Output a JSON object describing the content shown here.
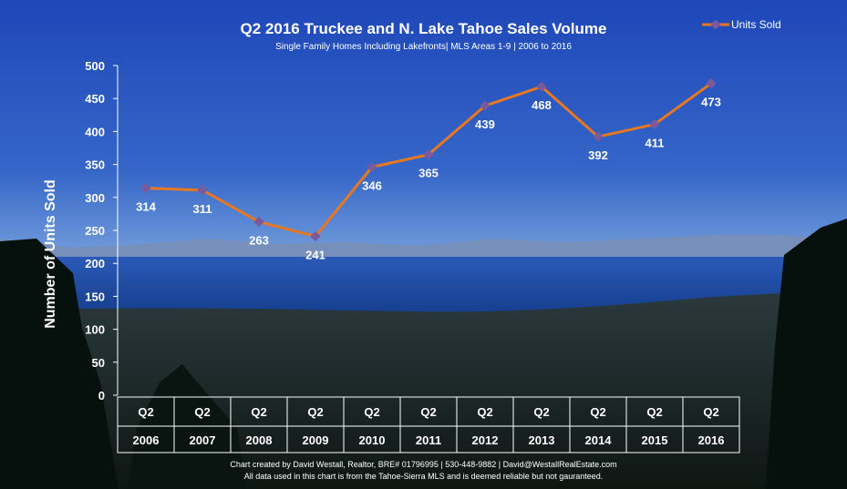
{
  "chart_data": {
    "type": "line",
    "title": "Q2 2016 Truckee and N. Lake Tahoe Sales Volume",
    "subtitle": "Single Family Homes Including Lakefronts| MLS Areas 1-9 | 2006 to 2016",
    "ylabel": "Number of Units Sold",
    "xlabel": "",
    "ylim": [
      0,
      500
    ],
    "yticks": [
      "0",
      "50",
      "100",
      "150",
      "200",
      "250",
      "300",
      "350",
      "400",
      "450",
      "500"
    ],
    "categories": [
      {
        "q": "Q2",
        "year": "2006"
      },
      {
        "q": "Q2",
        "year": "2007"
      },
      {
        "q": "Q2",
        "year": "2008"
      },
      {
        "q": "Q2",
        "year": "2009"
      },
      {
        "q": "Q2",
        "year": "2010"
      },
      {
        "q": "Q2",
        "year": "2011"
      },
      {
        "q": "Q2",
        "year": "2012"
      },
      {
        "q": "Q2",
        "year": "2013"
      },
      {
        "q": "Q2",
        "year": "2014"
      },
      {
        "q": "Q2",
        "year": "2015"
      },
      {
        "q": "Q2",
        "year": "2016"
      }
    ],
    "series": [
      {
        "name": "Units Sold",
        "values": [
          314,
          311,
          263,
          241,
          346,
          365,
          439,
          468,
          392,
          411,
          473
        ]
      }
    ],
    "legend_position": "top-right",
    "grid": false,
    "colors": {
      "line": "#E87722",
      "marker": "#7A5A9A"
    }
  },
  "footer": {
    "line1": "Chart created by David Westall, Realtor, BRE# 01796995 | 530-448-9882 | David@WestallRealEstate.com",
    "line2": "All data used in this chart is from the Tahoe-Sierra MLS and is deemed reliable but  not gauranteed."
  }
}
